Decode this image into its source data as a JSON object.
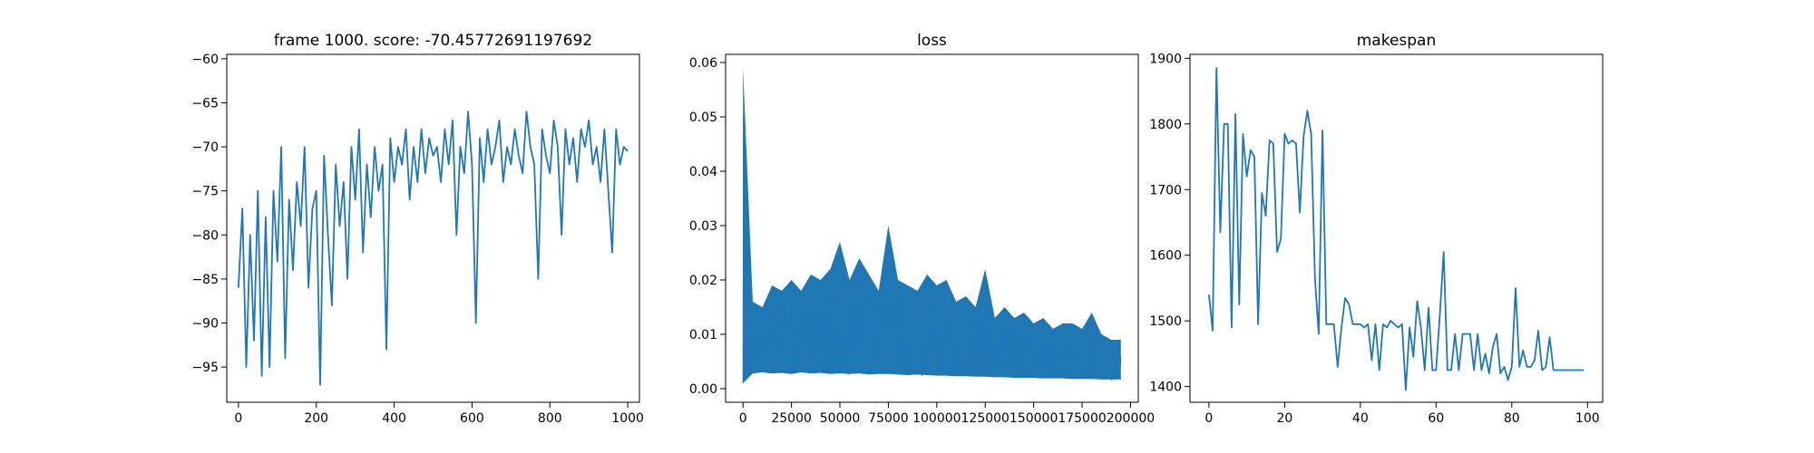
{
  "chart_data": [
    {
      "type": "line",
      "title": "frame 1000. score: -70.45772691197692",
      "xlabel": "",
      "ylabel": "",
      "xlim": [
        -30,
        1030
      ],
      "ylim": [
        -99,
        -59.5
      ],
      "xticks": [
        0,
        200,
        400,
        600,
        800,
        1000
      ],
      "yticks": [
        -95,
        -90,
        -85,
        -80,
        -75,
        -70,
        -65,
        -60
      ],
      "xtick_labels": [
        "0",
        "200",
        "400",
        "600",
        "800",
        "1000"
      ],
      "ytick_labels": [
        "−95",
        "−90",
        "−85",
        "−80",
        "−75",
        "−70",
        "−65",
        "−60"
      ],
      "color": "#1f77b4",
      "series": [
        {
          "x": [
            0,
            10,
            20,
            30,
            40,
            50,
            60,
            70,
            80,
            90,
            100,
            110,
            120,
            130,
            140,
            150,
            160,
            170,
            180,
            190,
            200,
            210,
            220,
            230,
            240,
            250,
            260,
            270,
            280,
            290,
            300,
            310,
            320,
            330,
            340,
            350,
            360,
            370,
            380,
            390,
            400,
            410,
            420,
            430,
            440,
            450,
            460,
            470,
            480,
            490,
            500,
            510,
            520,
            530,
            540,
            550,
            560,
            570,
            580,
            590,
            600,
            610,
            620,
            630,
            640,
            650,
            660,
            670,
            680,
            690,
            700,
            710,
            720,
            730,
            740,
            750,
            760,
            770,
            780,
            790,
            800,
            810,
            820,
            830,
            840,
            850,
            860,
            870,
            880,
            890,
            900,
            910,
            920,
            930,
            940,
            950,
            960,
            970,
            980,
            990,
            1000
          ],
          "y": [
            -86,
            -77,
            -95,
            -80,
            -92,
            -75,
            -96,
            -78,
            -95,
            -75,
            -83,
            -70,
            -94,
            -76,
            -84,
            -74,
            -79,
            -70,
            -86,
            -77,
            -75,
            -97,
            -71,
            -80,
            -88,
            -72,
            -79,
            -74,
            -85,
            -70,
            -76,
            -68,
            -82,
            -72,
            -78,
            -70,
            -75,
            -72,
            -93,
            -69,
            -74,
            -70,
            -72,
            -68,
            -76,
            -70,
            -74,
            -68,
            -73,
            -69,
            -71,
            -70,
            -74,
            -68,
            -72,
            -67,
            -80,
            -70,
            -73,
            -66,
            -72,
            -90,
            -69,
            -74,
            -68,
            -72,
            -70,
            -67,
            -74,
            -70,
            -72,
            -68,
            -71,
            -73,
            -66,
            -70,
            -72,
            -85,
            -68,
            -71,
            -73,
            -67,
            -70,
            -80,
            -68,
            -72,
            -69,
            -74,
            -68,
            -70,
            -67,
            -72,
            -70,
            -74,
            -68,
            -75,
            -82,
            -68,
            -72,
            -70,
            -70.5
          ]
        }
      ]
    },
    {
      "type": "line",
      "title": "loss",
      "xlabel": "",
      "ylabel": "",
      "xlim": [
        -9000,
        204000
      ],
      "ylim": [
        -0.0025,
        0.0615
      ],
      "xticks": [
        0,
        25000,
        50000,
        75000,
        100000,
        125000,
        150000,
        175000,
        200000
      ],
      "yticks": [
        0.0,
        0.01,
        0.02,
        0.03,
        0.04,
        0.05,
        0.06
      ],
      "xtick_labels": [
        "0",
        "25000",
        "50000",
        "75000",
        "100000",
        "125000",
        "150000",
        "175000",
        "200000"
      ],
      "ytick_labels": [
        "0.00",
        "0.01",
        "0.02",
        "0.03",
        "0.04",
        "0.05",
        "0.06"
      ],
      "color": "#1f77b4",
      "band": {
        "x": [
          0,
          5000,
          10000,
          15000,
          20000,
          25000,
          30000,
          35000,
          40000,
          45000,
          50000,
          55000,
          60000,
          65000,
          70000,
          75000,
          80000,
          85000,
          90000,
          95000,
          100000,
          105000,
          110000,
          115000,
          120000,
          125000,
          130000,
          135000,
          140000,
          145000,
          150000,
          155000,
          160000,
          165000,
          170000,
          175000,
          180000,
          185000,
          190000,
          195000
        ],
        "low": [
          0.001,
          0.0028,
          0.003,
          0.0028,
          0.0029,
          0.0027,
          0.003,
          0.0028,
          0.0029,
          0.0027,
          0.0028,
          0.0027,
          0.0028,
          0.0026,
          0.0027,
          0.0027,
          0.0026,
          0.0025,
          0.0026,
          0.0025,
          0.0024,
          0.0024,
          0.0023,
          0.0023,
          0.0022,
          0.0022,
          0.0021,
          0.0021,
          0.002,
          0.002,
          0.002,
          0.0019,
          0.0019,
          0.0019,
          0.0018,
          0.0018,
          0.0018,
          0.0017,
          0.0017,
          0.0017
        ],
        "high": [
          0.059,
          0.016,
          0.015,
          0.019,
          0.018,
          0.02,
          0.018,
          0.021,
          0.02,
          0.022,
          0.027,
          0.02,
          0.024,
          0.021,
          0.018,
          0.03,
          0.02,
          0.019,
          0.018,
          0.021,
          0.019,
          0.02,
          0.016,
          0.017,
          0.015,
          0.022,
          0.013,
          0.015,
          0.013,
          0.014,
          0.012,
          0.013,
          0.011,
          0.012,
          0.012,
          0.011,
          0.014,
          0.01,
          0.009,
          0.009
        ]
      }
    },
    {
      "type": "line",
      "title": "makespan",
      "xlabel": "",
      "ylabel": "",
      "xlim": [
        -5,
        104
      ],
      "ylim": [
        1376,
        1906
      ],
      "xticks": [
        0,
        20,
        40,
        60,
        80,
        100
      ],
      "yticks": [
        1400,
        1500,
        1600,
        1700,
        1800,
        1900
      ],
      "xtick_labels": [
        "0",
        "20",
        "40",
        "60",
        "80",
        "100"
      ],
      "ytick_labels": [
        "1400",
        "1500",
        "1600",
        "1700",
        "1800",
        "1900"
      ],
      "color": "#1f77b4",
      "series": [
        {
          "x": [
            0,
            1,
            2,
            3,
            4,
            5,
            6,
            7,
            8,
            9,
            10,
            11,
            12,
            13,
            14,
            15,
            16,
            17,
            18,
            19,
            20,
            21,
            22,
            23,
            24,
            25,
            26,
            27,
            28,
            29,
            30,
            31,
            32,
            33,
            34,
            35,
            36,
            37,
            38,
            39,
            40,
            41,
            42,
            43,
            44,
            45,
            46,
            47,
            48,
            49,
            50,
            51,
            52,
            53,
            54,
            55,
            56,
            57,
            58,
            59,
            60,
            61,
            62,
            63,
            64,
            65,
            66,
            67,
            68,
            69,
            70,
            71,
            72,
            73,
            74,
            75,
            76,
            77,
            78,
            79,
            80,
            81,
            82,
            83,
            84,
            85,
            86,
            87,
            88,
            89,
            90,
            91,
            92,
            93,
            94,
            95,
            96,
            97,
            98,
            99
          ],
          "y": [
            1540,
            1485,
            1885,
            1635,
            1800,
            1800,
            1490,
            1815,
            1525,
            1785,
            1720,
            1760,
            1750,
            1495,
            1695,
            1660,
            1775,
            1770,
            1605,
            1625,
            1785,
            1770,
            1775,
            1770,
            1665,
            1780,
            1820,
            1785,
            1565,
            1480,
            1790,
            1495,
            1495,
            1495,
            1430,
            1490,
            1535,
            1525,
            1495,
            1495,
            1495,
            1490,
            1495,
            1440,
            1495,
            1425,
            1495,
            1490,
            1500,
            1495,
            1490,
            1495,
            1395,
            1490,
            1445,
            1530,
            1490,
            1425,
            1520,
            1425,
            1425,
            1510,
            1605,
            1425,
            1425,
            1480,
            1425,
            1480,
            1480,
            1480,
            1425,
            1480,
            1425,
            1450,
            1420,
            1460,
            1480,
            1420,
            1430,
            1410,
            1430,
            1550,
            1430,
            1455,
            1430,
            1430,
            1440,
            1485,
            1425,
            1430,
            1475,
            1425,
            1425,
            1425,
            1425,
            1425,
            1425,
            1425,
            1425,
            1425
          ]
        }
      ]
    }
  ]
}
